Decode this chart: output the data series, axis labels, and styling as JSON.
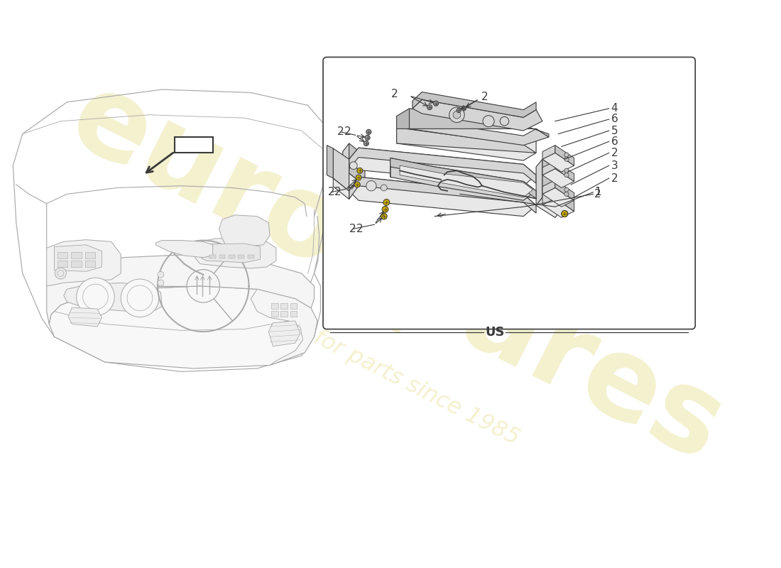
{
  "bg_color": "#ffffff",
  "lc": "#3a3a3a",
  "llc": "#c0c0c0",
  "llc2": "#a8a8a8",
  "yellow_color": "#c8a800",
  "wm_color": "#d8cc50",
  "wm_alpha": 0.28,
  "us_label": "US",
  "figsize": [
    11.0,
    8.0
  ],
  "dpi": 100,
  "wm_text1": "eurospares",
  "wm_text2": "a passion for parts since 1985"
}
